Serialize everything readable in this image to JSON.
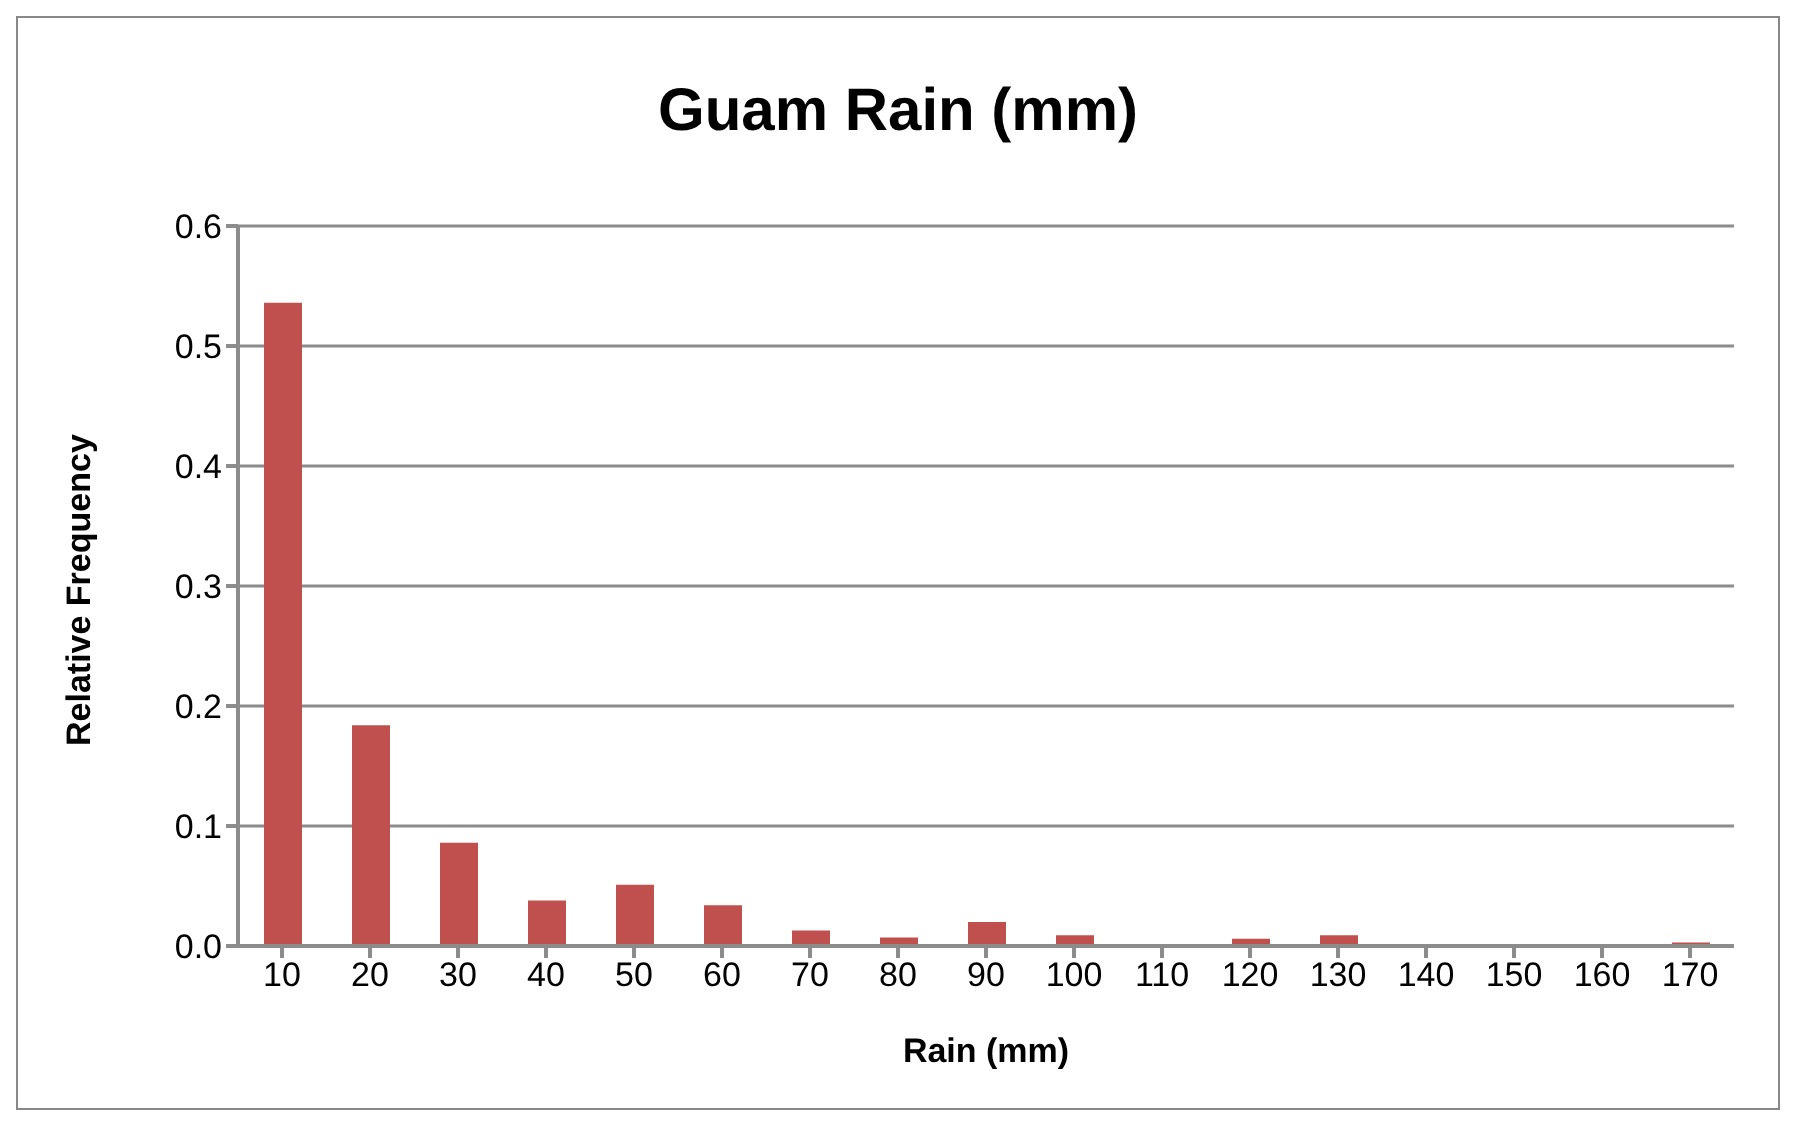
{
  "chart_data": {
    "type": "bar",
    "title": "Guam Rain (mm)",
    "xlabel": "Rain (mm)",
    "ylabel": "Relative Frequency",
    "categories": [
      "10",
      "20",
      "30",
      "40",
      "50",
      "60",
      "70",
      "80",
      "90",
      "100",
      "110",
      "120",
      "130",
      "140",
      "150",
      "160",
      "170"
    ],
    "values": [
      0.536,
      0.184,
      0.086,
      0.038,
      0.051,
      0.034,
      0.013,
      0.007,
      0.02,
      0.009,
      0,
      0.006,
      0.009,
      0,
      0,
      0,
      0.003
    ],
    "color": "#c0504d",
    "ylim": [
      0,
      0.6
    ],
    "yticks": [
      {
        "value": 0,
        "label": "0.0"
      },
      {
        "value": 0.1,
        "label": "0.1"
      },
      {
        "value": 0.2,
        "label": "0.2"
      },
      {
        "value": 0.3,
        "label": "0.3"
      },
      {
        "value": 0.4,
        "label": "0.4"
      },
      {
        "value": 0.5,
        "label": "0.5"
      },
      {
        "value": 0.6,
        "label": "0.6"
      }
    ],
    "grid": "y",
    "legend": false
  }
}
